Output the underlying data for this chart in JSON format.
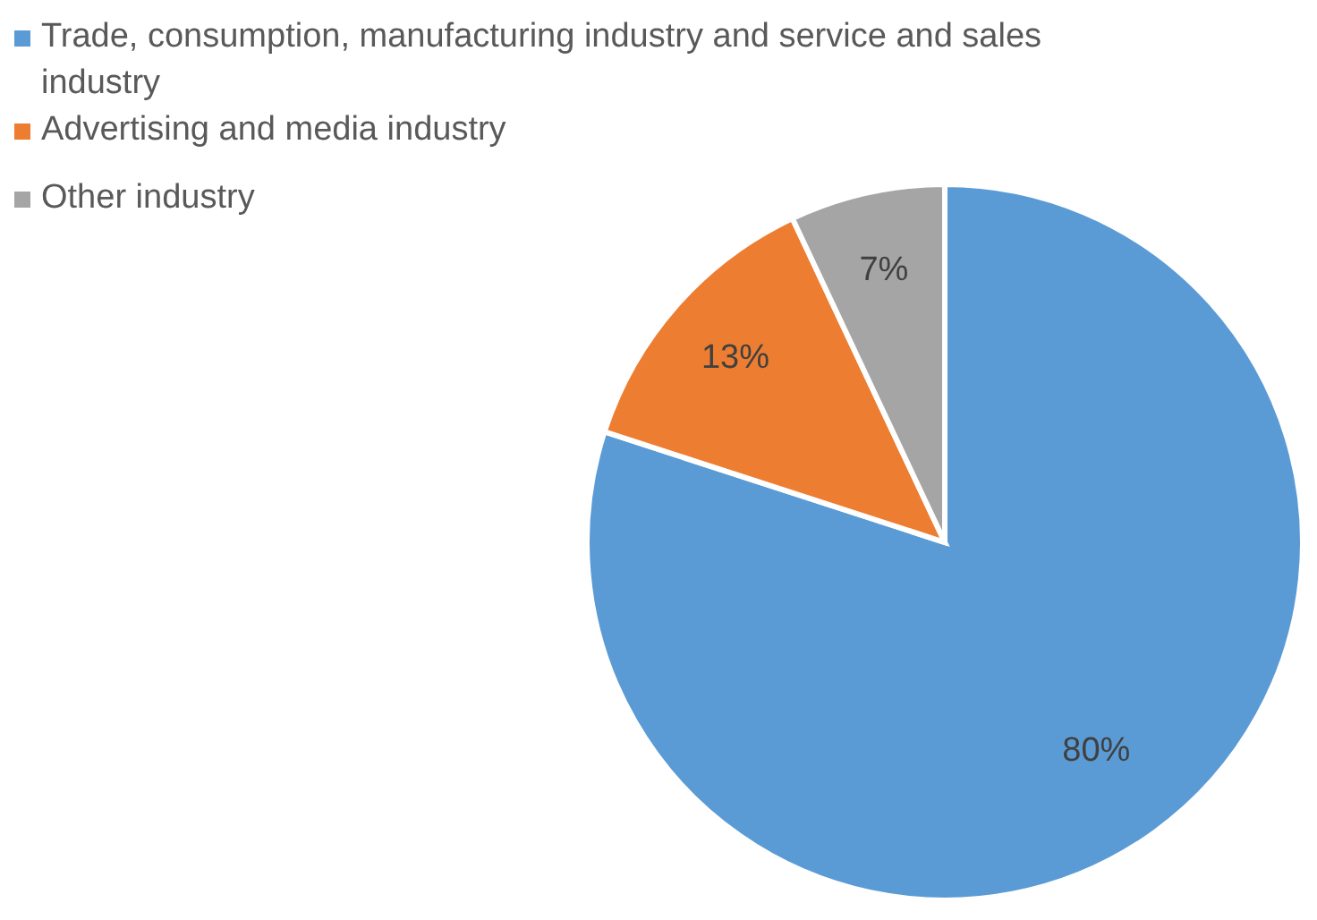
{
  "chart_data": {
    "type": "pie",
    "categories": [
      "Trade, consumption, manufacturing industry and service and sales industry",
      "Advertising and media industry",
      "Other industry"
    ],
    "values": [
      80,
      13,
      7
    ],
    "colors": [
      "#5b9bd5",
      "#ed7d31",
      "#a5a5a5"
    ],
    "value_labels": [
      "80%",
      "13%",
      "7%"
    ],
    "legend": "top left"
  }
}
